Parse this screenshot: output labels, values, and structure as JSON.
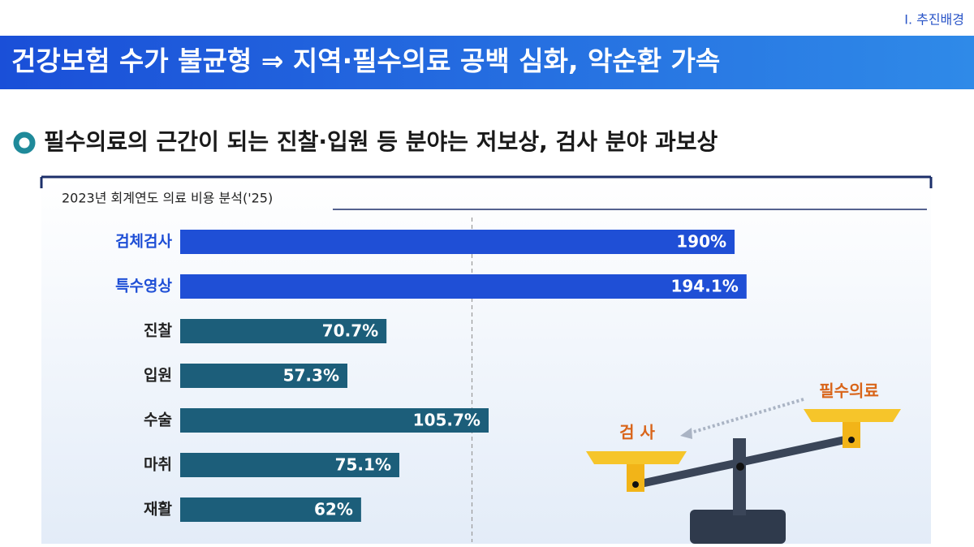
{
  "section_label": "Ⅰ. 추진배경",
  "headline": "건강보험 수가 불균형 ⇒ 지역·필수의료 공백 심화, 악순환 가속",
  "subheading": "필수의료의 근간이 되는 진찰·입원 등 분야는 저보상, 검사 분야 과보상",
  "illustration": {
    "labels": [
      "필수의료",
      "검 사"
    ]
  },
  "chart_data": {
    "type": "bar",
    "orientation": "horizontal",
    "title": "2023년 회계연도 의료 비용 분석('25)",
    "categories": [
      "검체검사",
      "특수영상",
      "진찰",
      "입원",
      "수술",
      "마취",
      "재활"
    ],
    "values": [
      190,
      194.1,
      70.7,
      57.3,
      105.7,
      75.1,
      62
    ],
    "value_labels": [
      "190%",
      "194.1%",
      "70.7%",
      "57.3%",
      "105.7%",
      "75.1%",
      "62%"
    ],
    "colors": [
      "#1f4fd6",
      "#1f4fd6",
      "#1c5e7a",
      "#1c5e7a",
      "#1c5e7a",
      "#1c5e7a",
      "#1c5e7a"
    ],
    "label_colors": [
      "#1f4fd6",
      "#1f4fd6",
      "#222222",
      "#222222",
      "#222222",
      "#222222",
      "#222222"
    ],
    "xlim": [
      0,
      200
    ],
    "reference_line": 100
  }
}
